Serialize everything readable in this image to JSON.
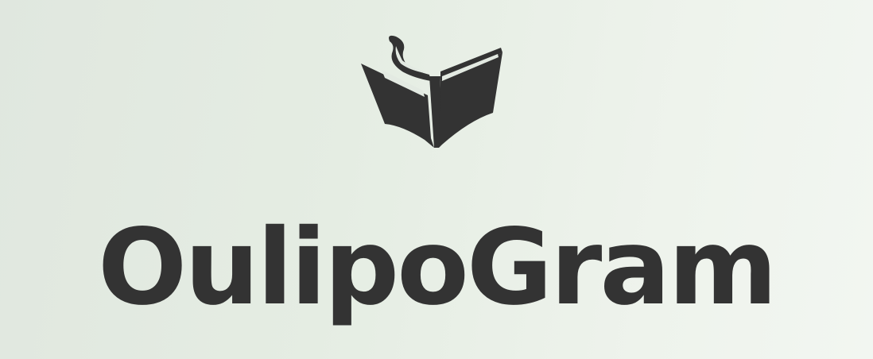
{
  "brand": {
    "name": "OulipoGram",
    "icon": "open-book-icon",
    "colors": {
      "ink": "#333333",
      "background_start": "#e0e7df",
      "background_end": "#f2f6f1"
    }
  }
}
